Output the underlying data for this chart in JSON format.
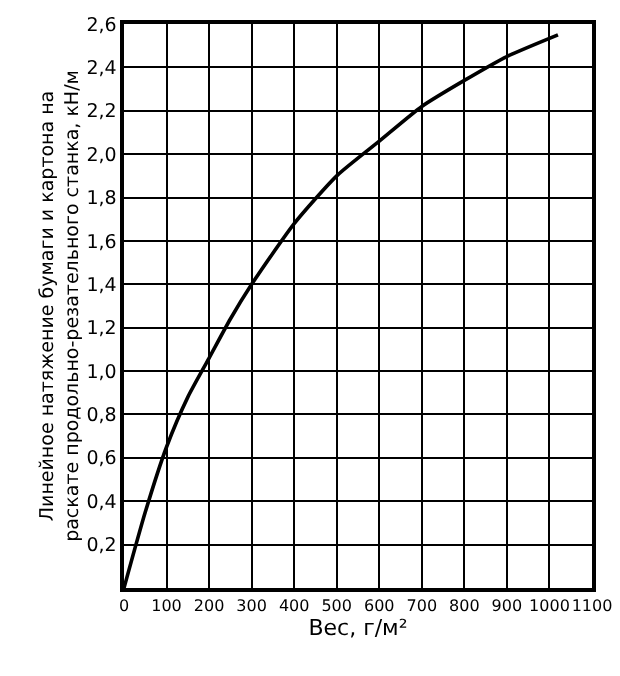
{
  "chart_data": {
    "type": "line",
    "xlabel": "Вес, г/м²",
    "ylabel": "Линейное натяжение бумаги и картона на\nраскате продольно-резательного станка, кН/м",
    "x": [
      0,
      50,
      100,
      150,
      200,
      250,
      300,
      400,
      500,
      600,
      700,
      800,
      900,
      1020
    ],
    "series": [
      {
        "color": "#000000",
        "values": [
          0,
          0.35,
          0.65,
          0.88,
          1.06,
          1.24,
          1.4,
          1.68,
          1.9,
          2.06,
          2.22,
          2.34,
          2.45,
          2.55
        ]
      }
    ],
    "xlim": [
      0,
      1100
    ],
    "xticks": [
      0,
      100,
      200,
      300,
      400,
      500,
      600,
      700,
      800,
      900,
      1000,
      1100
    ],
    "ylim": [
      0,
      2.6
    ],
    "yticks": [
      {
        "value": 0,
        "label": null
      },
      {
        "value": 0.2,
        "label": "0,2"
      },
      {
        "value": 0.4,
        "label": "0,4"
      },
      {
        "value": 0.6,
        "label": "0,6"
      },
      {
        "value": 0.8,
        "label": "0,8"
      },
      {
        "value": 1.0,
        "label": "1,0"
      },
      {
        "value": 1.2,
        "label": "1,2"
      },
      {
        "value": 1.4,
        "label": "1,4"
      },
      {
        "value": 1.6,
        "label": "1,6"
      },
      {
        "value": 1.8,
        "label": "1,8"
      },
      {
        "value": 2.0,
        "label": "2,0"
      },
      {
        "value": 2.2,
        "label": "2,2"
      },
      {
        "value": 2.4,
        "label": "2,4"
      },
      {
        "value": 2.6,
        "label": "2,6"
      }
    ],
    "grid": true,
    "marker": "none",
    "line_style": "solid"
  }
}
